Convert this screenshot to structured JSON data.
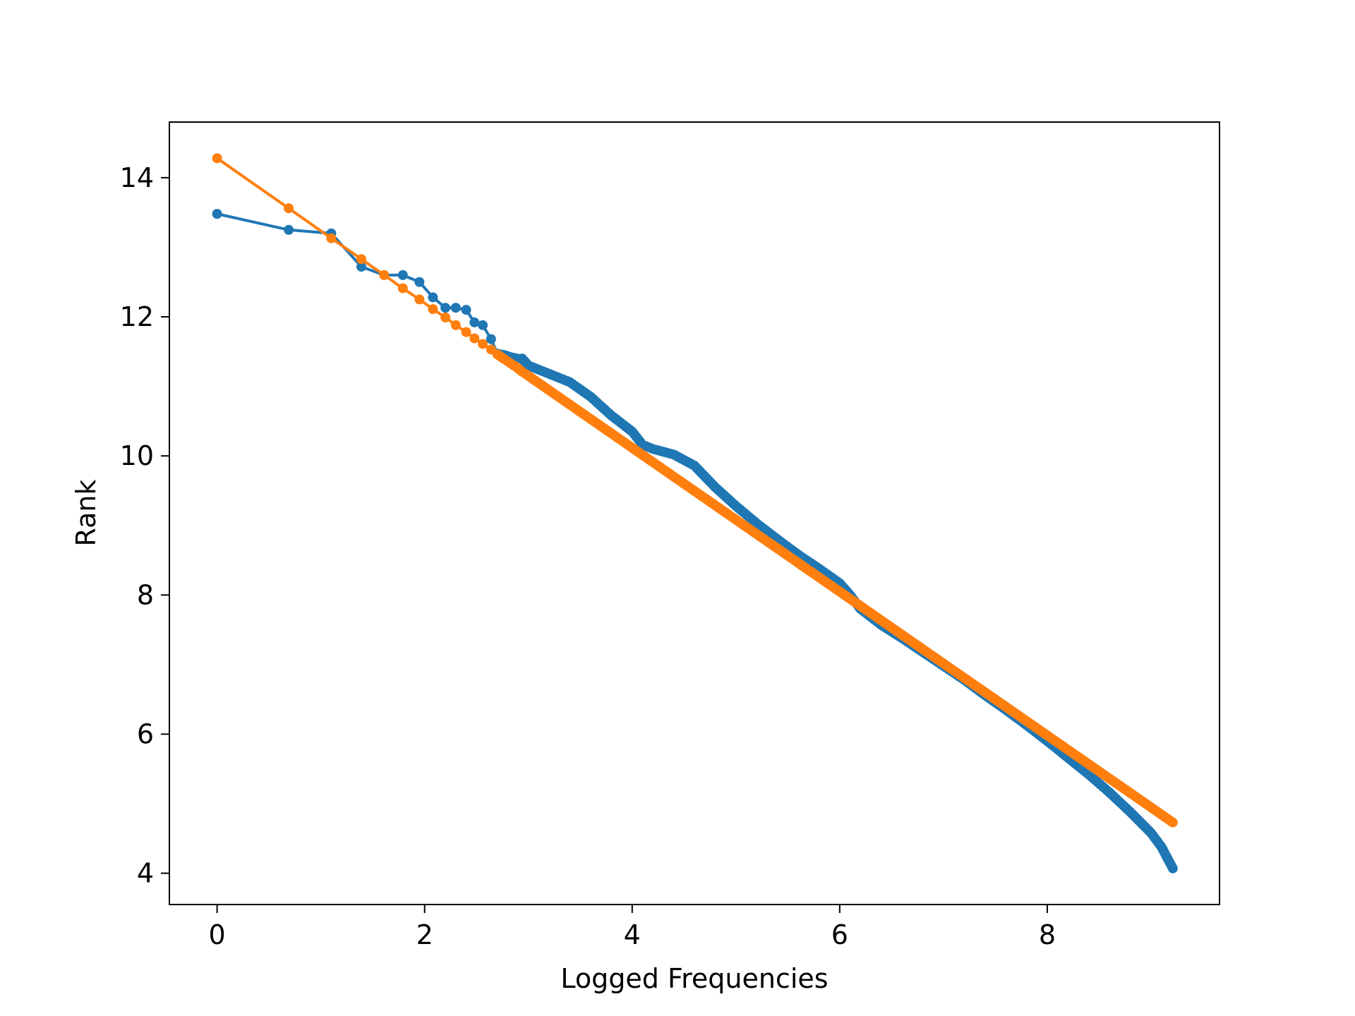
{
  "chart_data": {
    "type": "line",
    "title": "",
    "xlabel": "Logged Frequencies",
    "ylabel": "Rank",
    "xlim": [
      -0.46,
      9.66
    ],
    "ylim": [
      3.55,
      14.8
    ],
    "x_ticks": [
      0,
      2,
      4,
      6,
      8
    ],
    "y_ticks": [
      4,
      6,
      8,
      10,
      12,
      14
    ],
    "x_tick_labels": [
      "0",
      "2",
      "4",
      "6",
      "8"
    ],
    "y_tick_labels": [
      "4",
      "6",
      "8",
      "10",
      "12",
      "14"
    ],
    "grid": false,
    "legend": false,
    "marker": "circle",
    "series": [
      {
        "color": "#1f77b4",
        "points": [
          [
            0.0,
            13.48
          ],
          [
            0.69,
            13.25
          ],
          [
            1.1,
            13.2
          ],
          [
            1.39,
            12.72
          ],
          [
            1.61,
            12.6
          ],
          [
            1.79,
            12.6
          ],
          [
            1.95,
            12.5
          ],
          [
            2.08,
            12.28
          ],
          [
            2.2,
            12.13
          ],
          [
            2.3,
            12.13
          ],
          [
            2.4,
            12.1
          ],
          [
            2.48,
            11.92
          ],
          [
            2.56,
            11.88
          ],
          [
            2.64,
            11.68
          ],
          [
            2.7,
            11.47
          ],
          [
            2.77,
            11.45
          ],
          [
            2.83,
            11.42
          ],
          [
            2.89,
            11.4
          ],
          [
            2.94,
            11.4
          ],
          [
            3.0,
            11.3
          ],
          [
            3.2,
            11.18
          ],
          [
            3.4,
            11.06
          ],
          [
            3.6,
            10.85
          ],
          [
            3.8,
            10.58
          ],
          [
            4.0,
            10.35
          ],
          [
            4.1,
            10.16
          ],
          [
            4.2,
            10.1
          ],
          [
            4.4,
            10.02
          ],
          [
            4.6,
            9.86
          ],
          [
            4.8,
            9.55
          ],
          [
            5.0,
            9.28
          ],
          [
            5.2,
            9.03
          ],
          [
            5.4,
            8.8
          ],
          [
            5.6,
            8.58
          ],
          [
            5.8,
            8.38
          ],
          [
            6.0,
            8.17
          ],
          [
            6.1,
            8.0
          ],
          [
            6.2,
            7.8
          ],
          [
            6.4,
            7.57
          ],
          [
            6.6,
            7.38
          ],
          [
            6.8,
            7.18
          ],
          [
            7.0,
            6.98
          ],
          [
            7.2,
            6.78
          ],
          [
            7.4,
            6.56
          ],
          [
            7.6,
            6.35
          ],
          [
            7.8,
            6.13
          ],
          [
            8.0,
            5.9
          ],
          [
            8.2,
            5.66
          ],
          [
            8.4,
            5.42
          ],
          [
            8.6,
            5.16
          ],
          [
            8.8,
            4.88
          ],
          [
            9.0,
            4.58
          ],
          [
            9.1,
            4.38
          ],
          [
            9.21,
            4.07
          ]
        ]
      },
      {
        "color": "#ff7f0e",
        "points": [
          [
            0.0,
            14.28
          ],
          [
            0.69,
            13.56
          ],
          [
            1.1,
            13.13
          ],
          [
            1.39,
            12.83
          ],
          [
            1.61,
            12.6
          ],
          [
            1.79,
            12.41
          ],
          [
            1.95,
            12.25
          ],
          [
            2.08,
            12.11
          ],
          [
            2.2,
            11.99
          ],
          [
            2.3,
            11.88
          ],
          [
            2.4,
            11.78
          ],
          [
            2.48,
            11.69
          ],
          [
            2.56,
            11.61
          ],
          [
            2.64,
            11.53
          ],
          [
            2.7,
            11.46
          ],
          [
            2.77,
            11.39
          ],
          [
            2.83,
            11.33
          ],
          [
            2.89,
            11.27
          ],
          [
            2.94,
            11.21
          ],
          [
            3.0,
            11.15
          ],
          [
            9.21,
            4.73
          ]
        ]
      }
    ]
  }
}
